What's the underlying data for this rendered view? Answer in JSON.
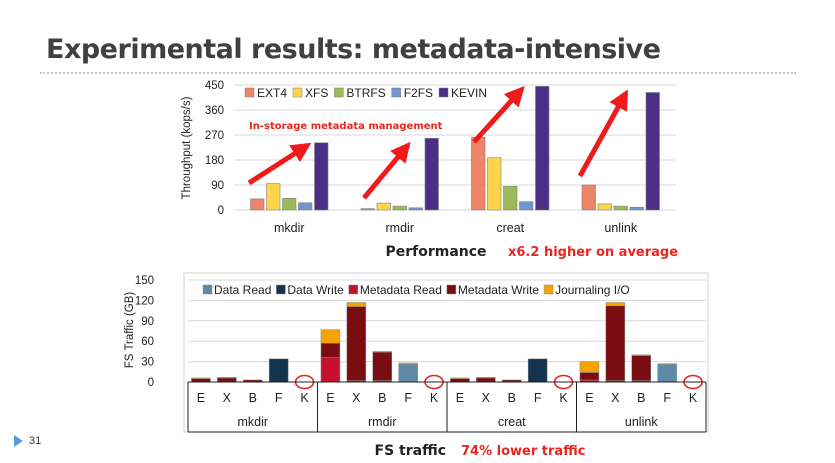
{
  "slide": {
    "title": "Experimental results: metadata-intensive",
    "number": "31",
    "perf_caption": "Performance",
    "perf_highlight": "x6.2 higher on average",
    "traffic_caption": "FS traffic",
    "traffic_highlight": "74% lower traffic",
    "annotation": "In-storage metadata management"
  },
  "colors": {
    "highlight": "#e8251f",
    "arrow": "#f01a1a",
    "title": "#404040"
  },
  "chart_data": [
    {
      "type": "bar",
      "title": "Performance",
      "ylabel": "Throughput (kops/s)",
      "xlabel": "",
      "ylim": [
        0,
        450
      ],
      "yticks": [
        "0",
        "90",
        "180",
        "270",
        "360",
        "450"
      ],
      "grid": true,
      "legend_position": "top-left",
      "categories": [
        "mkdir",
        "rmdir",
        "creat",
        "unlink"
      ],
      "series": [
        {
          "name": "EXT4",
          "color": "#ee8468",
          "values": [
            40,
            5,
            262,
            90
          ]
        },
        {
          "name": "XFS",
          "color": "#ffd44a",
          "values": [
            95,
            25,
            188,
            22
          ]
        },
        {
          "name": "BTRFS",
          "color": "#9bbb59",
          "values": [
            42,
            14,
            85,
            14
          ]
        },
        {
          "name": "F2FS",
          "color": "#6f96cf",
          "values": [
            26,
            8,
            30,
            10
          ]
        },
        {
          "name": "KEVIN",
          "color": "#4c2d87",
          "values": [
            242,
            258,
            445,
            423
          ]
        }
      ]
    },
    {
      "type": "bar",
      "stacked": true,
      "title": "FS traffic",
      "ylabel": "FS Traffic (GB)",
      "xlabel": "",
      "ylim": [
        0,
        150
      ],
      "yticks": [
        "0",
        "30",
        "60",
        "90",
        "120",
        "150"
      ],
      "grid": true,
      "legend_position": "top",
      "groups": [
        "mkdir",
        "rmdir",
        "creat",
        "unlink"
      ],
      "bar_labels": [
        "E",
        "X",
        "B",
        "F",
        "K"
      ],
      "marked_bar": "K",
      "series": [
        {
          "name": "Data Read",
          "color": "#5d8aa8",
          "values": [
            [
              0,
              0,
              0,
              0,
              0
            ],
            [
              0,
              0,
              0,
              26,
              0
            ],
            [
              0,
              0,
              0,
              0,
              0
            ],
            [
              0,
              0,
              0,
              26,
              0
            ]
          ]
        },
        {
          "name": "Data Write",
          "color": "#13334f",
          "values": [
            [
              0,
              0,
              0,
              34,
              0
            ],
            [
              0,
              0,
              0,
              0,
              0
            ],
            [
              0,
              0,
              0,
              34,
              0
            ],
            [
              0,
              0,
              0,
              0,
              0
            ]
          ]
        },
        {
          "name": "Metadata Read",
          "color": "#c8102e",
          "values": [
            [
              0,
              0,
              0,
              0,
              0
            ],
            [
              36,
              2,
              2,
              0,
              0
            ],
            [
              0,
              0,
              0,
              0,
              0
            ],
            [
              3,
              2,
              2,
              0,
              0
            ]
          ]
        },
        {
          "name": "Metadata Write",
          "color": "#7a0d12",
          "values": [
            [
              5,
              6,
              3,
              0,
              0
            ],
            [
              21,
              109,
              42,
              0,
              0
            ],
            [
              5,
              6,
              3,
              0,
              0
            ],
            [
              11,
              110,
              37,
              0,
              0
            ]
          ]
        },
        {
          "name": "Journaling I/O",
          "color": "#f5a300",
          "values": [
            [
              1,
              1,
              0,
              0,
              0
            ],
            [
              20,
              6,
              1,
              2,
              0
            ],
            [
              1,
              1,
              0,
              0,
              0
            ],
            [
              16,
              5,
              1,
              1,
              0
            ]
          ]
        }
      ]
    }
  ]
}
